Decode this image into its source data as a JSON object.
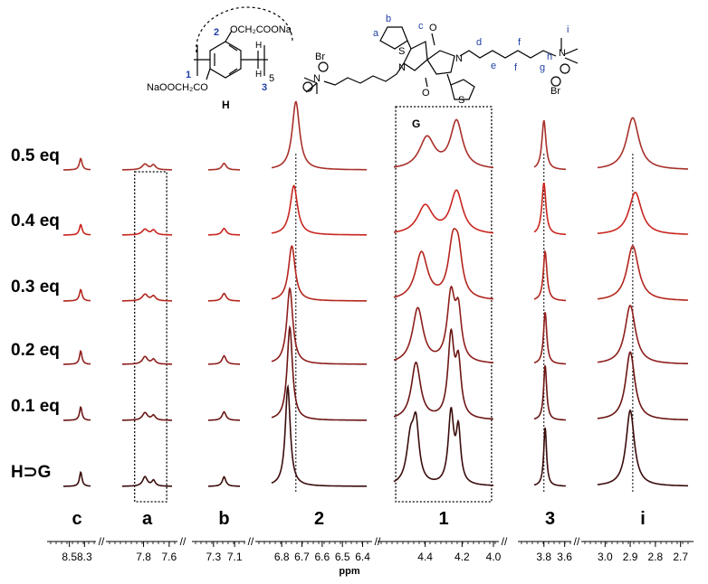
{
  "chart_data": {
    "type": "line",
    "xlabel": "ppm",
    "x_direction": "descending",
    "axis_break_style": "//",
    "segments": [
      {
        "id": "c",
        "label": "c",
        "range": [
          8.58,
          8.22
        ],
        "ticks": [
          "8.5",
          "8.3"
        ],
        "tick_values": [
          8.5,
          8.3
        ]
      },
      {
        "id": "a",
        "label": "a",
        "range": [
          7.95,
          7.6
        ],
        "ticks": [
          "7.8",
          "7.6"
        ],
        "tick_values": [
          7.8,
          7.62
        ]
      },
      {
        "id": "b",
        "label": "b",
        "range": [
          7.35,
          7.05
        ],
        "ticks": [
          "7.3",
          "7.1"
        ],
        "tick_values": [
          7.3,
          7.1
        ]
      },
      {
        "id": "2",
        "label": "2",
        "range": [
          6.85,
          6.38
        ],
        "ticks": [
          "6.8",
          "6.7",
          "6.6",
          "6.5",
          "6.4"
        ],
        "tick_values": [
          6.8,
          6.7,
          6.6,
          6.5,
          6.4
        ]
      },
      {
        "id": "1",
        "label": "1",
        "range": [
          4.57,
          4.03
        ],
        "ticks": [
          "4.4",
          "4.2",
          "4.0"
        ],
        "tick_values": [
          4.4,
          4.2,
          4.03
        ]
      },
      {
        "id": "3",
        "label": "3",
        "range": [
          3.88,
          3.62
        ],
        "ticks": [
          "3.8",
          "3.6"
        ],
        "tick_values": [
          3.8,
          3.63
        ]
      },
      {
        "id": "i",
        "label": "i",
        "range": [
          3.03,
          2.67
        ],
        "ticks": [
          "3.0",
          "2.9",
          "2.8",
          "2.7"
        ],
        "tick_values": [
          3.0,
          2.9,
          2.8,
          2.7
        ]
      }
    ],
    "series": [
      {
        "name": "0.5 eq",
        "color": "#a8302a",
        "peaks": [
          {
            "segment": "c",
            "ppm": 8.35,
            "height": 0.12,
            "width": 0.022
          },
          {
            "segment": "a",
            "ppm": 7.79,
            "height": 0.06,
            "width": 0.024
          },
          {
            "segment": "a",
            "ppm": 7.73,
            "height": 0.05,
            "width": 0.018
          },
          {
            "segment": "b",
            "ppm": 7.2,
            "height": 0.07,
            "width": 0.024
          },
          {
            "segment": "2",
            "ppm": 6.73,
            "height": 0.72,
            "width": 0.022
          },
          {
            "segment": "1",
            "ppm": 4.39,
            "height": 0.33,
            "width": 0.05
          },
          {
            "segment": "1",
            "ppm": 4.23,
            "height": 0.5,
            "width": 0.04
          },
          {
            "segment": "3",
            "ppm": 3.8,
            "height": 0.52,
            "width": 0.02
          },
          {
            "segment": "i",
            "ppm": 2.89,
            "height": 0.55,
            "width": 0.03
          }
        ]
      },
      {
        "name": "0.4 eq",
        "color": "#c9261f",
        "peaks": [
          {
            "segment": "c",
            "ppm": 8.35,
            "height": 0.11,
            "width": 0.022
          },
          {
            "segment": "a",
            "ppm": 7.79,
            "height": 0.06,
            "width": 0.024
          },
          {
            "segment": "a",
            "ppm": 7.73,
            "height": 0.05,
            "width": 0.018
          },
          {
            "segment": "b",
            "ppm": 7.2,
            "height": 0.07,
            "width": 0.024
          },
          {
            "segment": "2",
            "ppm": 6.74,
            "height": 0.52,
            "width": 0.022
          },
          {
            "segment": "1",
            "ppm": 4.4,
            "height": 0.3,
            "width": 0.05
          },
          {
            "segment": "1",
            "ppm": 4.23,
            "height": 0.45,
            "width": 0.04
          },
          {
            "segment": "3",
            "ppm": 3.8,
            "height": 0.55,
            "width": 0.02
          },
          {
            "segment": "i",
            "ppm": 2.88,
            "height": 0.45,
            "width": 0.03
          }
        ]
      },
      {
        "name": "0.3 eq",
        "color": "#b3261e",
        "peaks": [
          {
            "segment": "c",
            "ppm": 8.35,
            "height": 0.12,
            "width": 0.022
          },
          {
            "segment": "a",
            "ppm": 7.79,
            "height": 0.07,
            "width": 0.024
          },
          {
            "segment": "a",
            "ppm": 7.73,
            "height": 0.05,
            "width": 0.018
          },
          {
            "segment": "b",
            "ppm": 7.2,
            "height": 0.08,
            "width": 0.024
          },
          {
            "segment": "2",
            "ppm": 6.75,
            "height": 0.58,
            "width": 0.02
          },
          {
            "segment": "1",
            "ppm": 4.42,
            "height": 0.5,
            "width": 0.04
          },
          {
            "segment": "1",
            "ppm": 4.25,
            "height": 0.55,
            "width": 0.03
          },
          {
            "segment": "1",
            "ppm": 4.22,
            "height": 0.4,
            "width": 0.025
          },
          {
            "segment": "3",
            "ppm": 3.79,
            "height": 0.52,
            "width": 0.018
          },
          {
            "segment": "i",
            "ppm": 2.89,
            "height": 0.58,
            "width": 0.028
          }
        ]
      },
      {
        "name": "0.2 eq",
        "color": "#8e1f1c",
        "peaks": [
          {
            "segment": "c",
            "ppm": 8.35,
            "height": 0.14,
            "width": 0.02
          },
          {
            "segment": "a",
            "ppm": 7.79,
            "height": 0.08,
            "width": 0.022
          },
          {
            "segment": "a",
            "ppm": 7.73,
            "height": 0.05,
            "width": 0.016
          },
          {
            "segment": "b",
            "ppm": 7.2,
            "height": 0.09,
            "width": 0.022
          },
          {
            "segment": "2",
            "ppm": 6.76,
            "height": 0.8,
            "width": 0.018
          },
          {
            "segment": "1",
            "ppm": 4.44,
            "height": 0.58,
            "width": 0.035
          },
          {
            "segment": "1",
            "ppm": 4.26,
            "height": 0.7,
            "width": 0.025
          },
          {
            "segment": "1",
            "ppm": 4.22,
            "height": 0.48,
            "width": 0.02
          },
          {
            "segment": "3",
            "ppm": 3.79,
            "height": 0.55,
            "width": 0.016
          },
          {
            "segment": "i",
            "ppm": 2.9,
            "height": 0.62,
            "width": 0.025
          }
        ]
      },
      {
        "name": "0.1 eq",
        "color": "#6b1614",
        "peaks": [
          {
            "segment": "c",
            "ppm": 8.35,
            "height": 0.14,
            "width": 0.02
          },
          {
            "segment": "a",
            "ppm": 7.79,
            "height": 0.08,
            "width": 0.022
          },
          {
            "segment": "a",
            "ppm": 7.73,
            "height": 0.05,
            "width": 0.016
          },
          {
            "segment": "b",
            "ppm": 7.2,
            "height": 0.09,
            "width": 0.022
          },
          {
            "segment": "2",
            "ppm": 6.76,
            "height": 0.98,
            "width": 0.016
          },
          {
            "segment": "1",
            "ppm": 4.45,
            "height": 0.6,
            "width": 0.03
          },
          {
            "segment": "1",
            "ppm": 4.26,
            "height": 0.85,
            "width": 0.02
          },
          {
            "segment": "1",
            "ppm": 4.22,
            "height": 0.55,
            "width": 0.018
          },
          {
            "segment": "3",
            "ppm": 3.79,
            "height": 0.58,
            "width": 0.015
          },
          {
            "segment": "i",
            "ppm": 2.9,
            "height": 0.72,
            "width": 0.022
          }
        ]
      },
      {
        "name": "H⊃G",
        "color": "#3a0d0c",
        "peaks": [
          {
            "segment": "c",
            "ppm": 8.35,
            "height": 0.15,
            "width": 0.02
          },
          {
            "segment": "a",
            "ppm": 7.79,
            "height": 0.1,
            "width": 0.02
          },
          {
            "segment": "a",
            "ppm": 7.73,
            "height": 0.06,
            "width": 0.015
          },
          {
            "segment": "b",
            "ppm": 7.2,
            "height": 0.1,
            "width": 0.02
          },
          {
            "segment": "2",
            "ppm": 6.77,
            "height": 1.05,
            "width": 0.015
          },
          {
            "segment": "1",
            "ppm": 4.48,
            "height": 0.45,
            "width": 0.025
          },
          {
            "segment": "1",
            "ppm": 4.45,
            "height": 0.58,
            "width": 0.02
          },
          {
            "segment": "1",
            "ppm": 4.26,
            "height": 0.75,
            "width": 0.018
          },
          {
            "segment": "1",
            "ppm": 4.22,
            "height": 0.55,
            "width": 0.015
          },
          {
            "segment": "3",
            "ppm": 3.79,
            "height": 0.62,
            "width": 0.014
          },
          {
            "segment": "i",
            "ppm": 2.9,
            "height": 0.8,
            "width": 0.02
          }
        ]
      }
    ],
    "highlight_boxes": [
      {
        "segment": "a",
        "range": [
          7.85,
          7.65
        ]
      },
      {
        "segment": "1",
        "range": [
          4.55,
          4.05
        ]
      }
    ],
    "guide_lines": [
      {
        "segment": "2",
        "ppm": 6.73
      },
      {
        "segment": "3",
        "ppm": 3.8
      },
      {
        "segment": "i",
        "ppm": 2.89
      }
    ]
  },
  "structures": {
    "host": {
      "label": "H",
      "substituent_top": "OCH₂COONa",
      "substituent_bottom": "NaOOCH₂CO",
      "repeat": "5",
      "atom_labels": [
        "1",
        "2",
        "3"
      ]
    },
    "guest": {
      "label": "G",
      "counterion": "Br",
      "atom_labels": [
        "a",
        "b",
        "c",
        "d",
        "e",
        "f",
        "g",
        "h",
        "i"
      ],
      "heteroatoms": [
        "S",
        "S",
        "N",
        "N",
        "N",
        "N",
        "O",
        "O"
      ]
    }
  }
}
